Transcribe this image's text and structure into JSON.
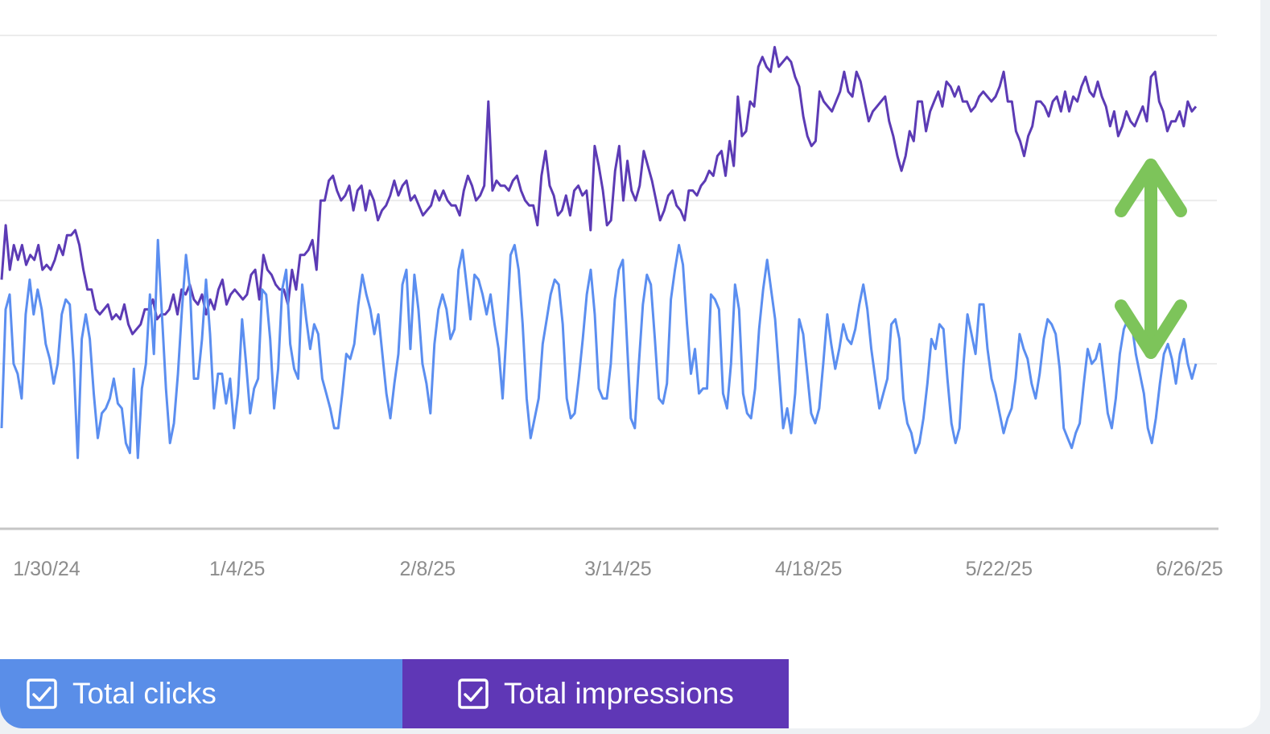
{
  "colors": {
    "clicks": "#5b8ef0",
    "impressions": "#5c3bb5",
    "arrow": "#7dc45a",
    "clicks_legend_bg": "#5a8ee8",
    "impressions_legend_bg": "#5f37b6",
    "gridline": "#ececec",
    "axis": "#c6c6c6"
  },
  "legend": {
    "clicks_label": "Total clicks",
    "impressions_label": "Total impressions",
    "clicks_checked": true,
    "impressions_checked": true
  },
  "chart_data": {
    "type": "line",
    "title": "",
    "xlabel": "",
    "ylabel": "",
    "x_tick_labels": [
      "1/30/24",
      "1/4/25",
      "2/8/25",
      "3/14/25",
      "4/18/25",
      "5/22/25",
      "6/26/25"
    ],
    "grid": "horizontal",
    "legend_placement": "bottom",
    "y_range": [
      0,
      100
    ],
    "annotation": "green double-headed arrow between the two series at right",
    "series": [
      {
        "name": "Total impressions",
        "color": "#5c3bb5",
        "values": [
          50,
          61,
          52,
          57,
          54,
          57,
          53,
          55,
          54,
          57,
          52,
          53,
          52,
          54,
          57,
          55,
          59,
          59,
          60,
          57,
          52,
          48,
          48,
          44,
          43,
          44,
          45,
          42,
          43,
          42,
          45,
          41,
          39,
          40,
          41,
          44,
          44,
          46,
          42,
          43,
          43,
          44,
          47,
          43,
          48,
          47,
          49,
          46,
          45,
          47,
          43,
          46,
          44,
          48,
          50,
          45,
          47,
          48,
          47,
          46,
          47,
          51,
          52,
          46,
          55,
          52,
          51,
          49,
          48,
          48,
          45,
          52,
          48,
          55,
          55,
          56,
          58,
          52,
          66,
          66,
          70,
          71,
          68,
          66,
          67,
          69,
          64,
          68,
          69,
          64,
          68,
          66,
          62,
          64,
          65,
          67,
          70,
          67,
          69,
          70,
          66,
          67,
          65,
          63,
          64,
          65,
          68,
          66,
          68,
          66,
          65,
          65,
          63,
          68,
          71,
          69,
          66,
          67,
          69,
          86,
          68,
          70,
          69,
          69,
          68,
          70,
          71,
          68,
          66,
          65,
          65,
          61,
          71,
          76,
          69,
          67,
          63,
          64,
          67,
          63,
          68,
          69,
          67,
          68,
          60,
          77,
          73,
          68,
          61,
          62,
          72,
          77,
          66,
          74,
          68,
          66,
          69,
          76,
          73,
          70,
          66,
          62,
          64,
          67,
          68,
          65,
          64,
          62,
          68,
          68,
          67,
          69,
          70,
          72,
          71,
          75,
          76,
          71,
          78,
          73,
          87,
          79,
          80,
          86,
          85,
          93,
          95,
          93,
          92,
          97,
          93,
          94,
          95,
          94,
          91,
          89,
          83,
          79,
          77,
          78,
          88,
          86,
          85,
          84,
          86,
          88,
          92,
          88,
          87,
          92,
          90,
          86,
          82,
          84,
          85,
          86,
          87,
          82,
          79,
          75,
          72,
          75,
          80,
          78,
          86,
          86,
          80,
          84,
          86,
          88,
          85,
          90,
          89,
          87,
          89,
          86,
          86,
          84,
          85,
          87,
          88,
          87,
          86,
          87,
          89,
          92,
          86,
          86,
          80,
          78,
          75,
          79,
          81,
          86,
          86,
          85,
          83,
          86,
          87,
          84,
          88,
          84,
          87,
          86,
          89,
          91,
          88,
          87,
          90,
          87,
          85,
          81,
          84,
          79,
          81,
          84,
          82,
          81,
          83,
          85,
          82,
          91,
          92,
          86,
          84,
          80,
          82,
          82,
          84,
          81,
          86,
          84,
          85
        ]
      },
      {
        "name": "Total clicks",
        "color": "#5b8ef0",
        "values": [
          20,
          44,
          47,
          33,
          31,
          26,
          43,
          50,
          43,
          48,
          44,
          37,
          34,
          29,
          33,
          43,
          46,
          45,
          33,
          14,
          38,
          43,
          38,
          27,
          18,
          23,
          24,
          26,
          30,
          25,
          24,
          17,
          15,
          32,
          14,
          28,
          33,
          47,
          35,
          58,
          43,
          28,
          17,
          21,
          31,
          44,
          55,
          48,
          30,
          30,
          38,
          50,
          39,
          24,
          31,
          31,
          25,
          30,
          20,
          27,
          42,
          33,
          23,
          28,
          30,
          48,
          47,
          38,
          24,
          32,
          48,
          52,
          37,
          32,
          30,
          49,
          42,
          36,
          41,
          39,
          30,
          27,
          24,
          20,
          20,
          27,
          35,
          34,
          37,
          45,
          51,
          47,
          44,
          39,
          43,
          35,
          27,
          22,
          29,
          35,
          49,
          52,
          36,
          51,
          44,
          33,
          29,
          23,
          37,
          44,
          47,
          44,
          38,
          40,
          52,
          56,
          49,
          42,
          51,
          50,
          47,
          43,
          47,
          41,
          36,
          26,
          40,
          55,
          57,
          52,
          41,
          26,
          18,
          22,
          26,
          37,
          42,
          47,
          50,
          49,
          41,
          26,
          22,
          23,
          30,
          38,
          47,
          52,
          43,
          28,
          26,
          26,
          33,
          46,
          52,
          54,
          38,
          22,
          20,
          33,
          45,
          51,
          49,
          38,
          26,
          25,
          29,
          46,
          52,
          57,
          53,
          41,
          31,
          36,
          27,
          28,
          28,
          47,
          46,
          44,
          27,
          24,
          33,
          49,
          44,
          27,
          23,
          22,
          28,
          40,
          48,
          54,
          48,
          42,
          31,
          20,
          24,
          19,
          27,
          42,
          39,
          31,
          23,
          21,
          24,
          33,
          43,
          37,
          32,
          36,
          41,
          38,
          37,
          40,
          45,
          49,
          44,
          36,
          30,
          24,
          27,
          30,
          41,
          42,
          38,
          26,
          21,
          19,
          15,
          17,
          22,
          29,
          38,
          36,
          41,
          40,
          30,
          21,
          17,
          20,
          33,
          43,
          39,
          35,
          45,
          45,
          36,
          30,
          27,
          23,
          19,
          22,
          24,
          30,
          39,
          36,
          34,
          29,
          26,
          31,
          38,
          42,
          41,
          39,
          32,
          20,
          18,
          16,
          19,
          21,
          29,
          36,
          33,
          34,
          37,
          30,
          23,
          20,
          26,
          35,
          40,
          42,
          41,
          35,
          31,
          27,
          20,
          17,
          22,
          29,
          35,
          37,
          34,
          29,
          35,
          38,
          33,
          30,
          33
        ]
      }
    ]
  }
}
